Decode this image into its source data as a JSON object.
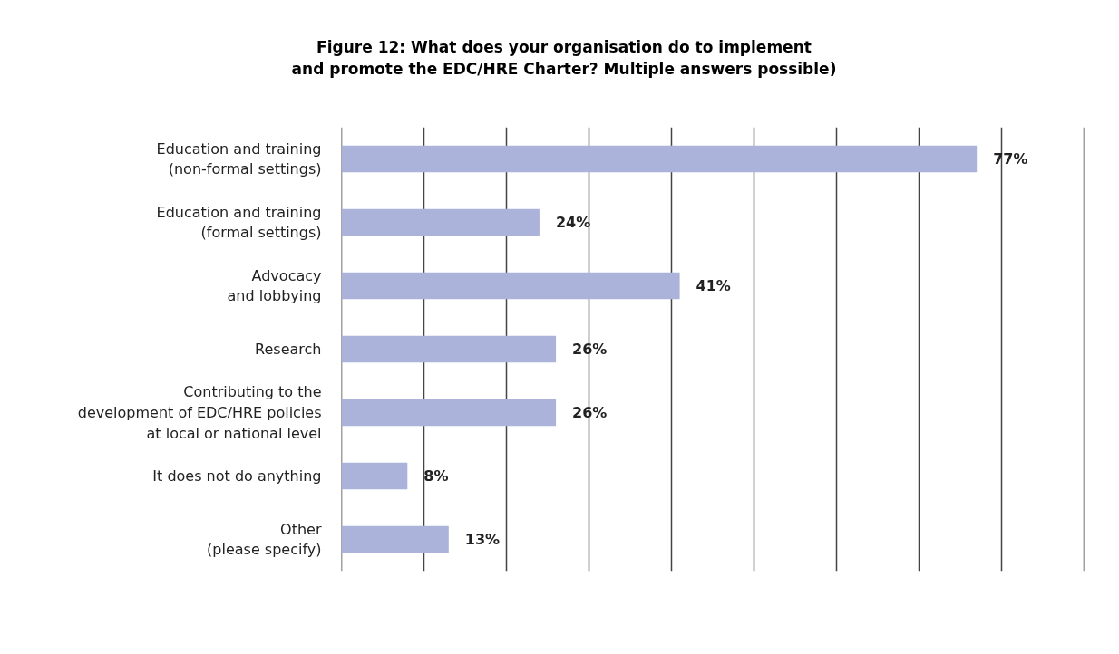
{
  "chart_data": {
    "type": "bar",
    "orientation": "horizontal",
    "title": "Figure 12: What does your organisation do to implement\nand promote the EDC/HRE Charter? Multiple answers possible)",
    "categories": [
      "Education and training\n(non-formal settings)",
      "Education and training\n(formal settings)",
      "Advocacy\nand lobbying",
      "Research",
      "Contributing to the\ndevelopment of EDC/HRE policies\nat local or national level",
      "It does not do anything",
      "Other\n(please specify)"
    ],
    "values": [
      77,
      24,
      41,
      26,
      26,
      8,
      13
    ],
    "value_labels": [
      "77%",
      "24%",
      "41%",
      "26%",
      "26%",
      "8%",
      "13%"
    ],
    "color": "#abb3db",
    "xlim": [
      0,
      90
    ],
    "xticks": [
      {
        "value": 0,
        "label": null
      },
      {
        "value": 10,
        "label": null
      },
      {
        "value": 20,
        "label": null
      },
      {
        "value": 30,
        "label": null
      },
      {
        "value": 40,
        "label": null
      },
      {
        "value": 50,
        "label": null
      },
      {
        "value": 60,
        "label": null
      },
      {
        "value": 70,
        "label": null
      },
      {
        "value": 80,
        "label": null
      },
      {
        "value": 90,
        "label": null
      }
    ],
    "grid": "x",
    "tick_labels": "y"
  }
}
